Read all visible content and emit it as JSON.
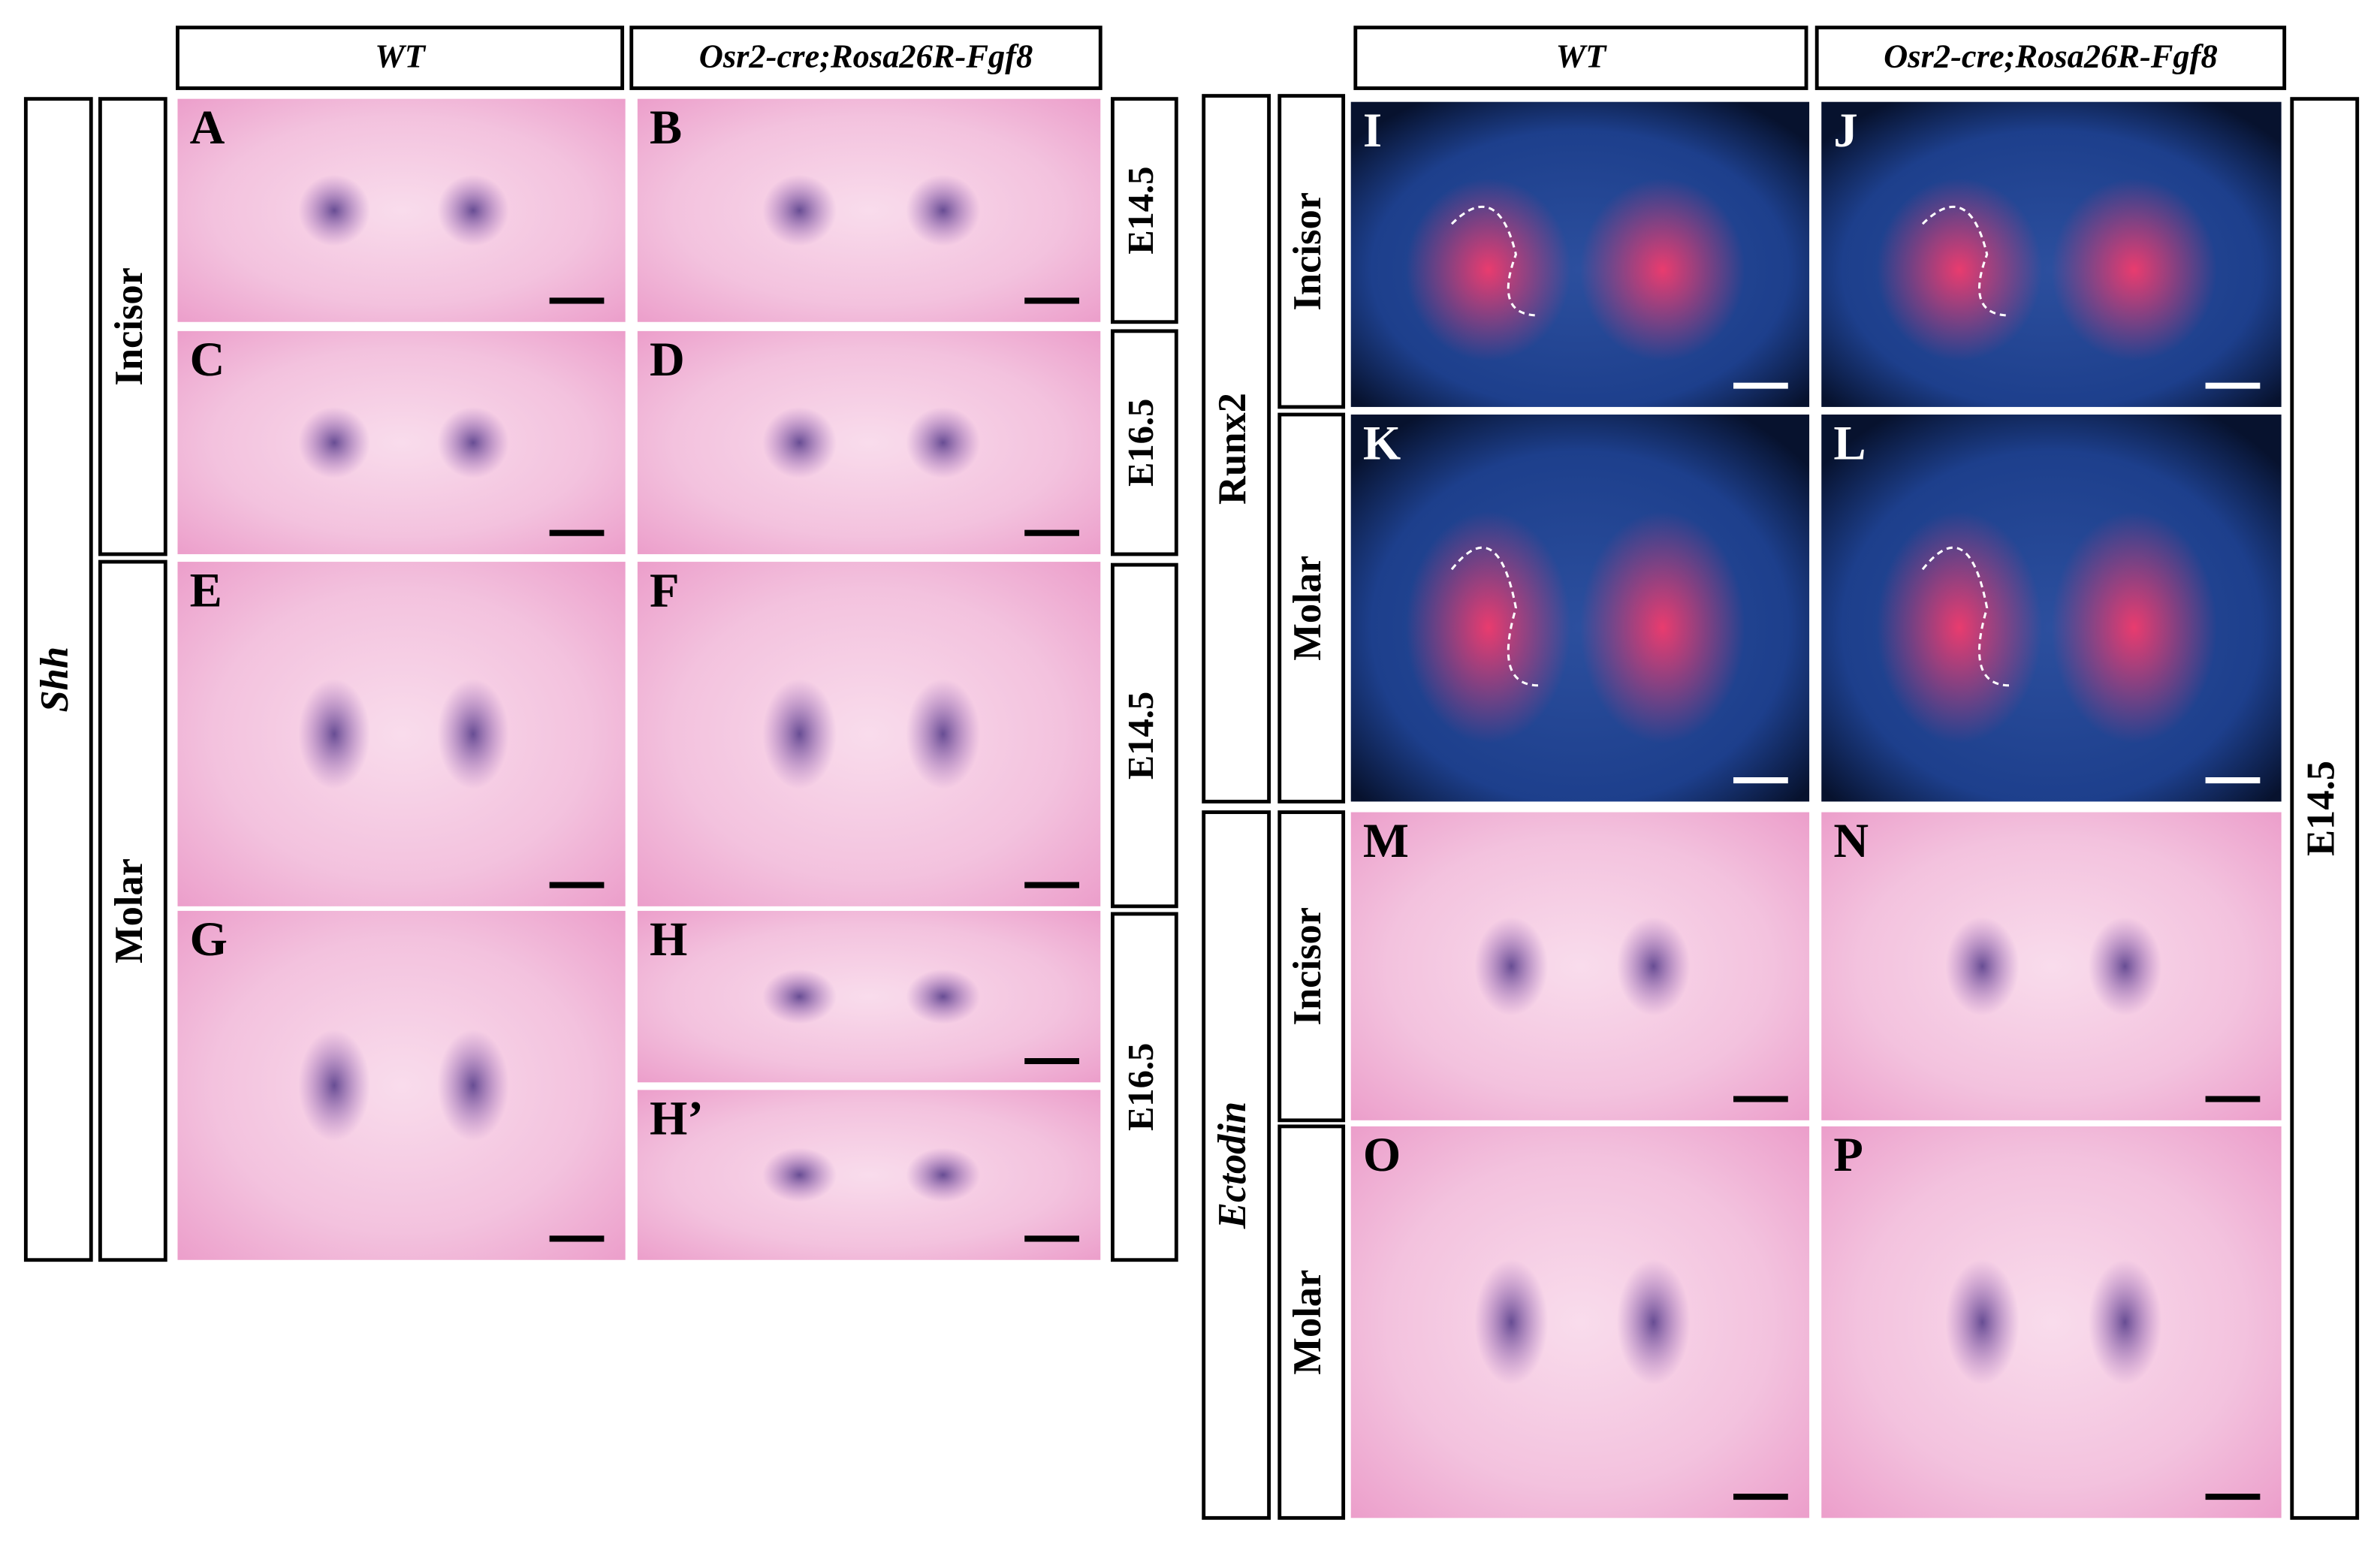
{
  "left": {
    "headers": [
      "WT",
      "Osr2-cre;Rosa26R-Fgf8"
    ],
    "gene": "Shh",
    "regions": [
      "Incisor",
      "Molar"
    ],
    "stages": [
      "E14.5",
      "E16.5",
      "E14.5",
      "E16.5"
    ],
    "panels": [
      "A",
      "B",
      "C",
      "D",
      "E",
      "F",
      "G",
      "H",
      "H’"
    ]
  },
  "right": {
    "headers": [
      "WT",
      "Osr2-cre;Rosa26R-Fgf8"
    ],
    "genes": [
      "Runx2",
      "Ectodin"
    ],
    "regions": [
      "Incisor",
      "Molar",
      "Incisor",
      "Molar"
    ],
    "stage": "E14.5",
    "panels": [
      "I",
      "J",
      "K",
      "L",
      "M",
      "N",
      "O",
      "P"
    ]
  }
}
